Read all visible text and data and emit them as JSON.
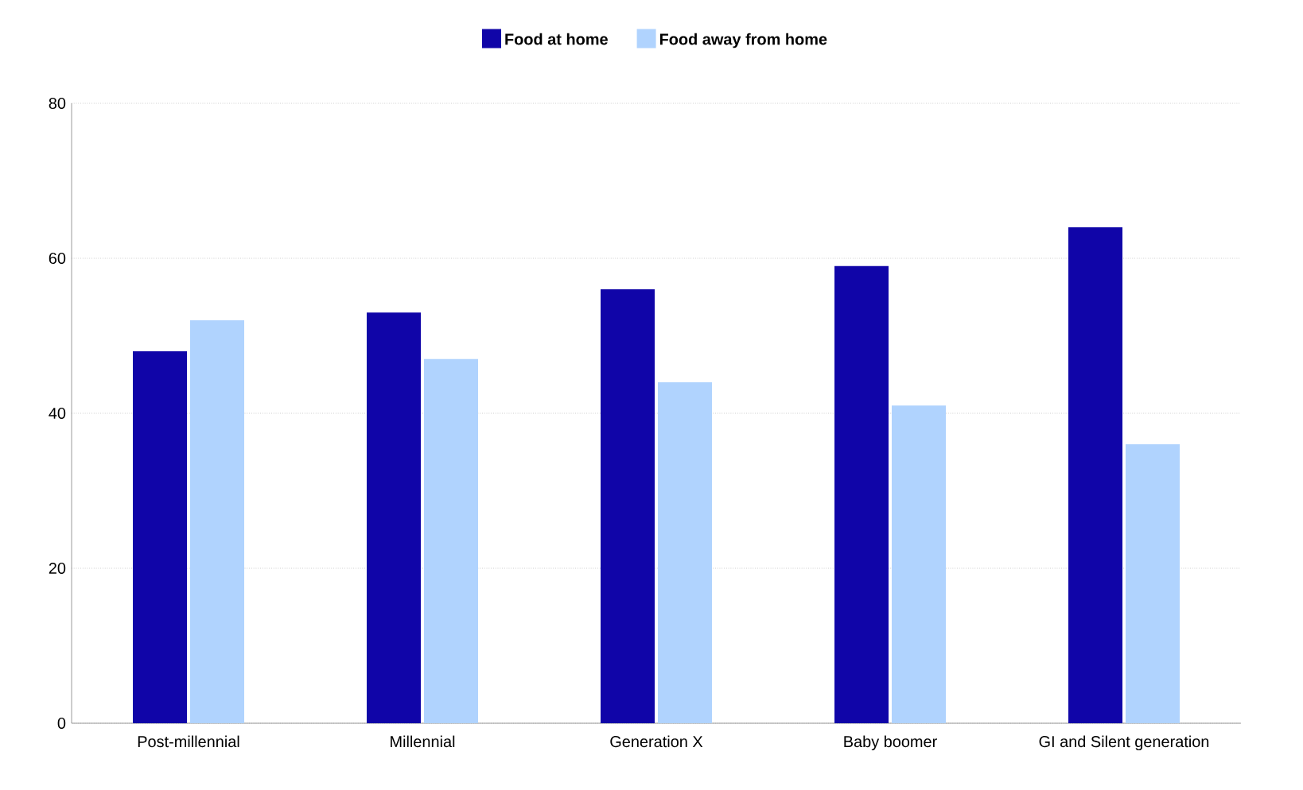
{
  "chart_data": {
    "type": "bar",
    "categories": [
      "Post-millennial",
      "Millennial",
      "Generation X",
      "Baby boomer",
      "GI and Silent generation"
    ],
    "series": [
      {
        "name": "Food at home",
        "color": "#1005a8",
        "values": [
          48,
          53,
          56,
          59,
          64
        ]
      },
      {
        "name": "Food away from home",
        "color": "#b0d3fe",
        "values": [
          52,
          47,
          44,
          41,
          36
        ]
      }
    ],
    "ylim": [
      0,
      80
    ],
    "yticks": [
      0,
      20,
      40,
      60,
      80
    ],
    "grid": "y",
    "legend": "top"
  }
}
